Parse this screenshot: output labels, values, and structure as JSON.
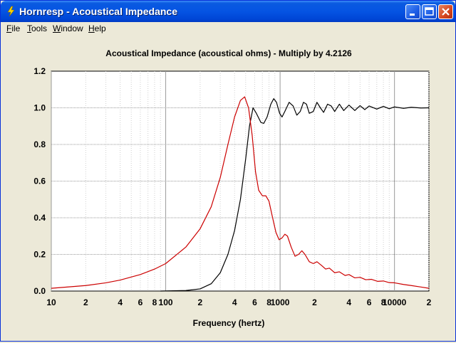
{
  "window": {
    "title": "Hornresp - Acoustical Impedance",
    "controls": [
      "minimize",
      "maximize",
      "close"
    ]
  },
  "menu": [
    {
      "label": "File",
      "accel": "F",
      "rest": "ile"
    },
    {
      "label": "Tools",
      "accel": "T",
      "rest": "ools"
    },
    {
      "label": "Window",
      "accel": "W",
      "rest": "indow"
    },
    {
      "label": "Help",
      "accel": "H",
      "rest": "elp"
    }
  ],
  "colors": {
    "title_bar": "#0554e3",
    "plot_background": "#ffffff",
    "series_black": "#000000",
    "series_red": "#cc0000",
    "window_background": "#ece9d8"
  },
  "chart_data": {
    "type": "line",
    "title": "Acoustical Impedance (acoustical ohms) - Multiply by 4.2126",
    "xlabel": "Frequency (hertz)",
    "ylabel": "",
    "x_scale": "log",
    "xlim": [
      10,
      20000
    ],
    "ylim": [
      0,
      1.2
    ],
    "x_tick_labels": [
      {
        "x": 10,
        "label": "10"
      },
      {
        "x": 20,
        "label": "2"
      },
      {
        "x": 40,
        "label": "4"
      },
      {
        "x": 60,
        "label": "6"
      },
      {
        "x": 80,
        "label": "8"
      },
      {
        "x": 100,
        "label": "100"
      },
      {
        "x": 200,
        "label": "2"
      },
      {
        "x": 400,
        "label": "4"
      },
      {
        "x": 600,
        "label": "6"
      },
      {
        "x": 800,
        "label": "8"
      },
      {
        "x": 1000,
        "label": "1000"
      },
      {
        "x": 2000,
        "label": "2"
      },
      {
        "x": 4000,
        "label": "4"
      },
      {
        "x": 6000,
        "label": "6"
      },
      {
        "x": 8000,
        "label": "8"
      },
      {
        "x": 10000,
        "label": "10000"
      },
      {
        "x": 20000,
        "label": "2"
      }
    ],
    "y_ticks": [
      0.0,
      0.2,
      0.4,
      0.6,
      0.8,
      1.0,
      1.2
    ],
    "y_tick_labels": [
      "0.0",
      "0.2",
      "0.4",
      "0.6",
      "0.8",
      "1.0",
      "1.2"
    ],
    "grid": true,
    "series": [
      {
        "color": "#000000",
        "points": [
          [
            90,
            0.0
          ],
          [
            150,
            0.003
          ],
          [
            200,
            0.012
          ],
          [
            250,
            0.04
          ],
          [
            300,
            0.1
          ],
          [
            350,
            0.2
          ],
          [
            400,
            0.33
          ],
          [
            450,
            0.5
          ],
          [
            500,
            0.72
          ],
          [
            540,
            0.9
          ],
          [
            580,
            1.0
          ],
          [
            620,
            0.97
          ],
          [
            680,
            0.92
          ],
          [
            720,
            0.915
          ],
          [
            770,
            0.95
          ],
          [
            830,
            1.02
          ],
          [
            880,
            1.05
          ],
          [
            930,
            1.03
          ],
          [
            990,
            0.97
          ],
          [
            1040,
            0.95
          ],
          [
            1100,
            0.98
          ],
          [
            1200,
            1.03
          ],
          [
            1300,
            1.01
          ],
          [
            1400,
            0.96
          ],
          [
            1500,
            0.98
          ],
          [
            1600,
            1.03
          ],
          [
            1700,
            1.02
          ],
          [
            1800,
            0.97
          ],
          [
            1950,
            0.98
          ],
          [
            2100,
            1.03
          ],
          [
            2250,
            1.0
          ],
          [
            2400,
            0.975
          ],
          [
            2600,
            1.02
          ],
          [
            2800,
            1.01
          ],
          [
            3000,
            0.98
          ],
          [
            3300,
            1.02
          ],
          [
            3600,
            0.985
          ],
          [
            4000,
            1.015
          ],
          [
            4500,
            0.985
          ],
          [
            5000,
            1.012
          ],
          [
            5500,
            0.99
          ],
          [
            6000,
            1.01
          ],
          [
            7000,
            0.993
          ],
          [
            8000,
            1.008
          ],
          [
            9000,
            0.995
          ],
          [
            10000,
            1.005
          ],
          [
            12000,
            0.997
          ],
          [
            14000,
            1.003
          ],
          [
            17000,
            0.999
          ],
          [
            20000,
            1.0
          ]
        ]
      },
      {
        "color": "#cc0000",
        "points": [
          [
            10,
            0.015
          ],
          [
            20,
            0.03
          ],
          [
            30,
            0.045
          ],
          [
            40,
            0.06
          ],
          [
            60,
            0.09
          ],
          [
            80,
            0.12
          ],
          [
            100,
            0.15
          ],
          [
            150,
            0.24
          ],
          [
            200,
            0.34
          ],
          [
            250,
            0.46
          ],
          [
            300,
            0.62
          ],
          [
            350,
            0.8
          ],
          [
            400,
            0.95
          ],
          [
            450,
            1.04
          ],
          [
            490,
            1.06
          ],
          [
            530,
            1.0
          ],
          [
            570,
            0.85
          ],
          [
            610,
            0.65
          ],
          [
            650,
            0.55
          ],
          [
            700,
            0.52
          ],
          [
            750,
            0.52
          ],
          [
            800,
            0.49
          ],
          [
            860,
            0.4
          ],
          [
            920,
            0.32
          ],
          [
            980,
            0.28
          ],
          [
            1040,
            0.29
          ],
          [
            1100,
            0.31
          ],
          [
            1160,
            0.3
          ],
          [
            1250,
            0.24
          ],
          [
            1350,
            0.19
          ],
          [
            1450,
            0.2
          ],
          [
            1550,
            0.22
          ],
          [
            1650,
            0.2
          ],
          [
            1800,
            0.16
          ],
          [
            1950,
            0.15
          ],
          [
            2100,
            0.16
          ],
          [
            2300,
            0.14
          ],
          [
            2500,
            0.12
          ],
          [
            2700,
            0.125
          ],
          [
            3000,
            0.1
          ],
          [
            3300,
            0.105
          ],
          [
            3700,
            0.085
          ],
          [
            4000,
            0.09
          ],
          [
            4500,
            0.072
          ],
          [
            5000,
            0.075
          ],
          [
            5600,
            0.062
          ],
          [
            6300,
            0.064
          ],
          [
            7100,
            0.053
          ],
          [
            8000,
            0.055
          ],
          [
            9000,
            0.046
          ],
          [
            10000,
            0.045
          ],
          [
            12000,
            0.036
          ],
          [
            14000,
            0.03
          ],
          [
            17000,
            0.022
          ],
          [
            20000,
            0.015
          ]
        ]
      }
    ]
  }
}
